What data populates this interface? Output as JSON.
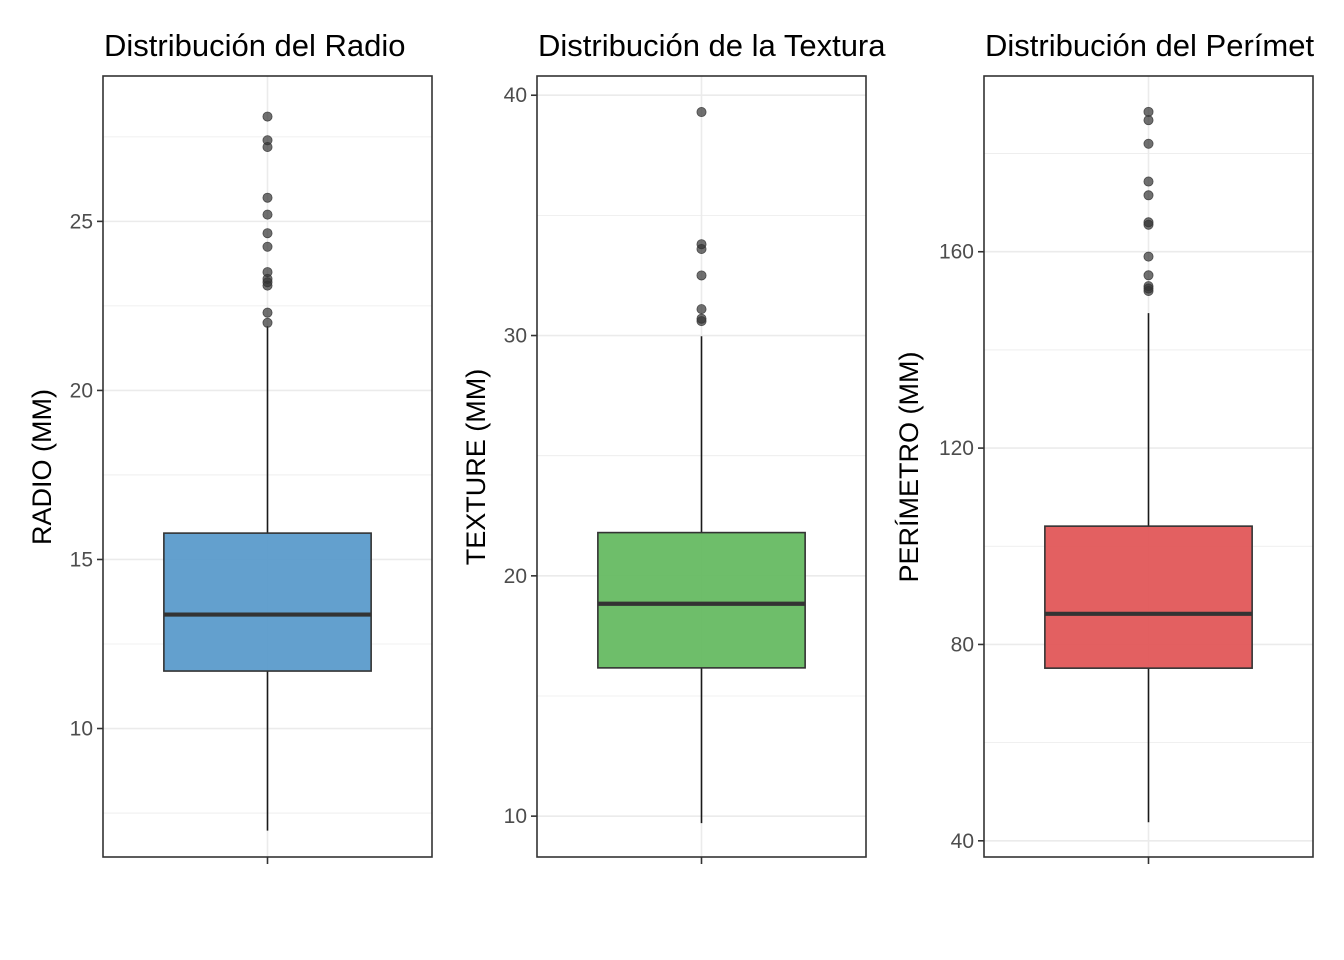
{
  "chart_data": [
    {
      "type": "boxplot",
      "title": "Distribución del Radio",
      "ylabel": "RADIO (MM)",
      "xlabel": "",
      "ylim": [
        6.2,
        29.3
      ],
      "yticks": [
        10,
        15,
        20,
        25
      ],
      "box": {
        "min": 6.98,
        "q1": 11.7,
        "median": 13.37,
        "q3": 15.78,
        "max": 21.9
      },
      "outliers": [
        22.0,
        22.3,
        23.1,
        23.2,
        23.3,
        23.5,
        24.25,
        24.65,
        25.2,
        25.7,
        27.2,
        27.4,
        28.1
      ],
      "fill": "#5b9bcb",
      "grid": true
    },
    {
      "type": "boxplot",
      "title": "Distribución de la Textura",
      "ylabel": "TEXTURE (MM)",
      "xlabel": "",
      "ylim": [
        8.3,
        40.8
      ],
      "yticks": [
        10,
        20,
        30,
        40
      ],
      "box": {
        "min": 9.71,
        "q1": 16.17,
        "median": 18.84,
        "q3": 21.8,
        "max": 29.97
      },
      "outliers": [
        30.6,
        30.7,
        31.1,
        32.5,
        33.6,
        33.8,
        39.3
      ],
      "fill": "#66bb62",
      "grid": true
    },
    {
      "type": "boxplot",
      "title": "Distribución del Perímet",
      "ylabel": "PERÍMETRO (MM)",
      "xlabel": "",
      "ylim": [
        36.7,
        195.8
      ],
      "yticks": [
        40,
        80,
        120,
        160
      ],
      "box": {
        "min": 43.79,
        "q1": 75.17,
        "median": 86.24,
        "q3": 104.1,
        "max": 147.5
      },
      "outliers": [
        152.0,
        152.5,
        153.0,
        155.2,
        159.0,
        165.5,
        166.0,
        171.5,
        174.3,
        182.0,
        186.8,
        188.5
      ],
      "fill": "#e15759",
      "grid": true
    }
  ]
}
